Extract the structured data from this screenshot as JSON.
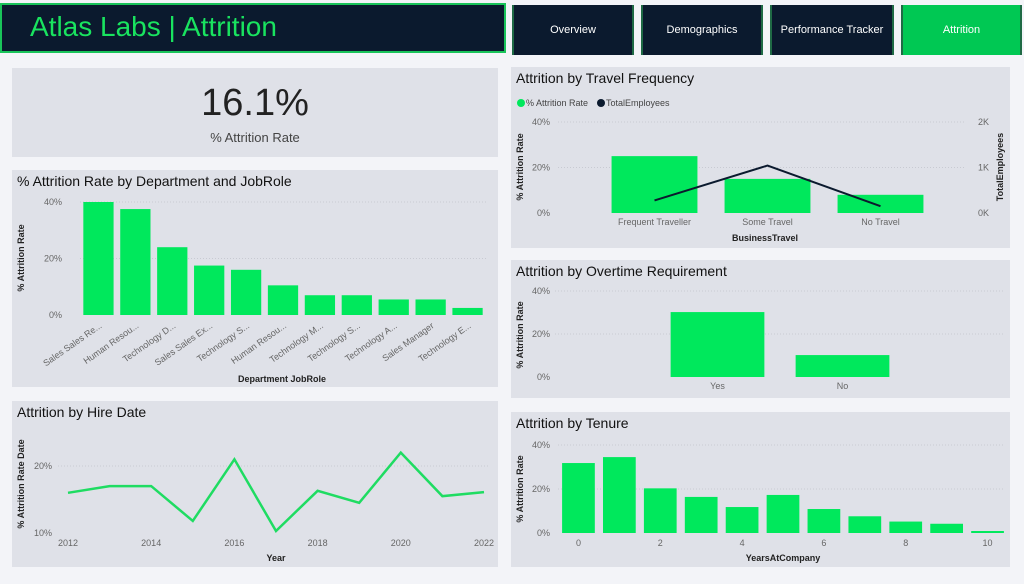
{
  "header": {
    "title": "Atlas Labs | Attrition"
  },
  "tabs": [
    {
      "label": "Overview",
      "active": false
    },
    {
      "label": "Demographics",
      "active": false
    },
    {
      "label": "Performance Tracker",
      "active": false
    },
    {
      "label": "Attrition",
      "active": true
    }
  ],
  "colors": {
    "accent": "#00e85c",
    "navy": "#0b1a2e",
    "panel": "#dfe1e8"
  },
  "kpi": {
    "value": "16.1%",
    "label": "% Attrition Rate"
  },
  "chart_data": [
    {
      "id": "dept",
      "type": "bar",
      "title": "% Attrition Rate by Department and JobRole",
      "xlabel": "Department JobRole",
      "ylabel": "% Attrition Rate",
      "categories": [
        "Sales Sales Re...",
        "Human Resou...",
        "Technology D...",
        "Sales Sales Ex...",
        "Technology S...",
        "Human Resou...",
        "Technology M...",
        "Technology S...",
        "Technology A...",
        "Sales Manager",
        "Technology E..."
      ],
      "values": [
        40,
        37.5,
        24,
        17.5,
        16,
        10.5,
        7,
        7,
        5.5,
        5.5,
        2.5
      ],
      "yticks": [
        "0%",
        "20%",
        "40%"
      ],
      "ylim": [
        0,
        40
      ],
      "grid": true
    },
    {
      "id": "hire",
      "type": "line",
      "title": "Attrition by Hire Date",
      "xlabel": "Year",
      "ylabel": "% Attrition Rate Date",
      "x": [
        2012,
        2013,
        2014,
        2015,
        2016,
        2017,
        2018,
        2019,
        2020,
        2021,
        2022
      ],
      "values": [
        16,
        17,
        17,
        11.8,
        21,
        10.3,
        16.3,
        14.5,
        22,
        15.5,
        16.1
      ],
      "xticks": [
        "2012",
        "2014",
        "2016",
        "2018",
        "2020",
        "2022"
      ],
      "yticks": [
        "10%",
        "20%"
      ],
      "ylim": [
        10,
        20
      ],
      "grid": true
    },
    {
      "id": "travel",
      "type": "bar",
      "title": "Attrition by Travel Frequency",
      "xlabel": "BusinessTravel",
      "ylabel": "% Attrition Rate",
      "y2label": "TotalEmployees",
      "categories": [
        "Frequent Traveller",
        "Some Travel",
        "No Travel"
      ],
      "series": [
        {
          "name": "% Attrition Rate",
          "type": "bar",
          "values": [
            25,
            15,
            8
          ],
          "color": "#00e85c"
        },
        {
          "name": "TotalEmployees",
          "type": "line",
          "values": [
            277,
            1043,
            150
          ],
          "color": "#0b1a2e"
        }
      ],
      "yticks": [
        "0%",
        "20%",
        "40%"
      ],
      "y2ticks": [
        "0K",
        "1K",
        "2K"
      ],
      "ylim": [
        0,
        40
      ],
      "y2lim": [
        0,
        2000
      ],
      "legend": "top-left",
      "grid": true
    },
    {
      "id": "overtime",
      "type": "bar",
      "title": "Attrition by Overtime Requirement",
      "ylabel": "% Attrition Rate",
      "categories": [
        "Yes",
        "No"
      ],
      "values": [
        30.2,
        10.2
      ],
      "yticks": [
        "0%",
        "20%",
        "40%"
      ],
      "ylim": [
        0,
        40
      ],
      "grid": true
    },
    {
      "id": "tenure",
      "type": "bar",
      "title": "Attrition by Tenure",
      "xlabel": "YearsAtCompany",
      "ylabel": "% Attrition Rate",
      "categories": [
        0,
        1,
        2,
        3,
        4,
        5,
        6,
        7,
        8,
        9,
        10
      ],
      "values": [
        31.8,
        34.5,
        20.3,
        16.4,
        11.8,
        17.3,
        10.9,
        7.6,
        5.2,
        4.2,
        0.9
      ],
      "xticks": [
        "0",
        "2",
        "4",
        "6",
        "8",
        "10"
      ],
      "yticks": [
        "0%",
        "20%",
        "40%"
      ],
      "ylim": [
        0,
        40
      ],
      "grid": true
    }
  ]
}
